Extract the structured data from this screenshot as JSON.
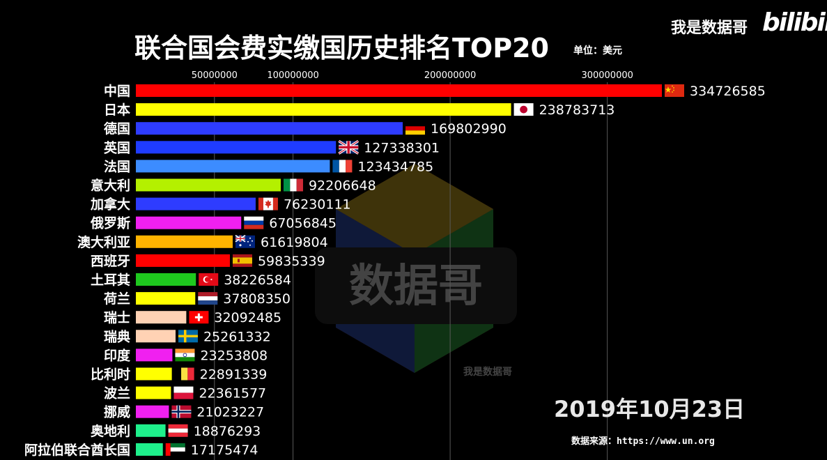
{
  "header": {
    "title": "联合国会费实缴国历史排名TOP20",
    "unit": "单位：美元",
    "channel": "我是数据哥",
    "platform_logo": "bilibili"
  },
  "footer": {
    "date": "2019年10月23日",
    "source": "数据来源：https://www.un.org"
  },
  "watermark": {
    "center_text": "数据哥",
    "small_text": "我是数据哥"
  },
  "chart_data": {
    "type": "bar",
    "orientation": "horizontal",
    "title": "联合国会费实缴国历史排名TOP20",
    "unit": "单位：美元",
    "date": "2019年10月23日",
    "x_ticks": [
      50000000,
      100000000,
      200000000,
      300000000
    ],
    "x_tick_labels": [
      "50000000",
      "100000000",
      "200000000",
      "300000000"
    ],
    "xlim": [
      0,
      340000000
    ],
    "grid": true,
    "categories": [
      "中国",
      "日本",
      "德国",
      "英国",
      "法国",
      "意大利",
      "加拿大",
      "俄罗斯",
      "澳大利亚",
      "西班牙",
      "土耳其",
      "荷兰",
      "瑞士",
      "瑞典",
      "印度",
      "比利时",
      "波兰",
      "挪威",
      "奥地利",
      "阿拉伯联合酋长国"
    ],
    "values": [
      334726585,
      238783713,
      169802990,
      127338301,
      123434785,
      92206648,
      76230111,
      67056845,
      61619804,
      59835339,
      38226584,
      37808350,
      32092485,
      25261332,
      23253808,
      22891339,
      22361577,
      21023227,
      18876293,
      17175474
    ],
    "value_labels": [
      "334726585",
      "238783713",
      "169802990",
      "127338301",
      "123434785",
      "92206648",
      "76230111",
      "67056845",
      "61619804",
      "59835339",
      "38226584",
      "37808350",
      "32092485",
      "25261332",
      "23253808",
      "22891339",
      "22361577",
      "21023227",
      "18876293",
      "17175474"
    ],
    "bar_colors": [
      "#ff0000",
      "#ffff00",
      "#2e3cff",
      "#1f3cff",
      "#3c8cff",
      "#b4f000",
      "#2e3cff",
      "#f020f0",
      "#ffb400",
      "#ff0000",
      "#1ec81e",
      "#ffff00",
      "#ffd2b4",
      "#ffd2b4",
      "#f020f0",
      "#ffff00",
      "#ffff00",
      "#f020f0",
      "#1ef08c",
      "#1ef08c"
    ],
    "flags": [
      "cn",
      "jp",
      "de",
      "gb",
      "fr",
      "it",
      "ca",
      "ru",
      "au",
      "es",
      "tr",
      "nl",
      "ch",
      "se",
      "in",
      "be",
      "pl",
      "no",
      "at",
      "ae"
    ]
  }
}
